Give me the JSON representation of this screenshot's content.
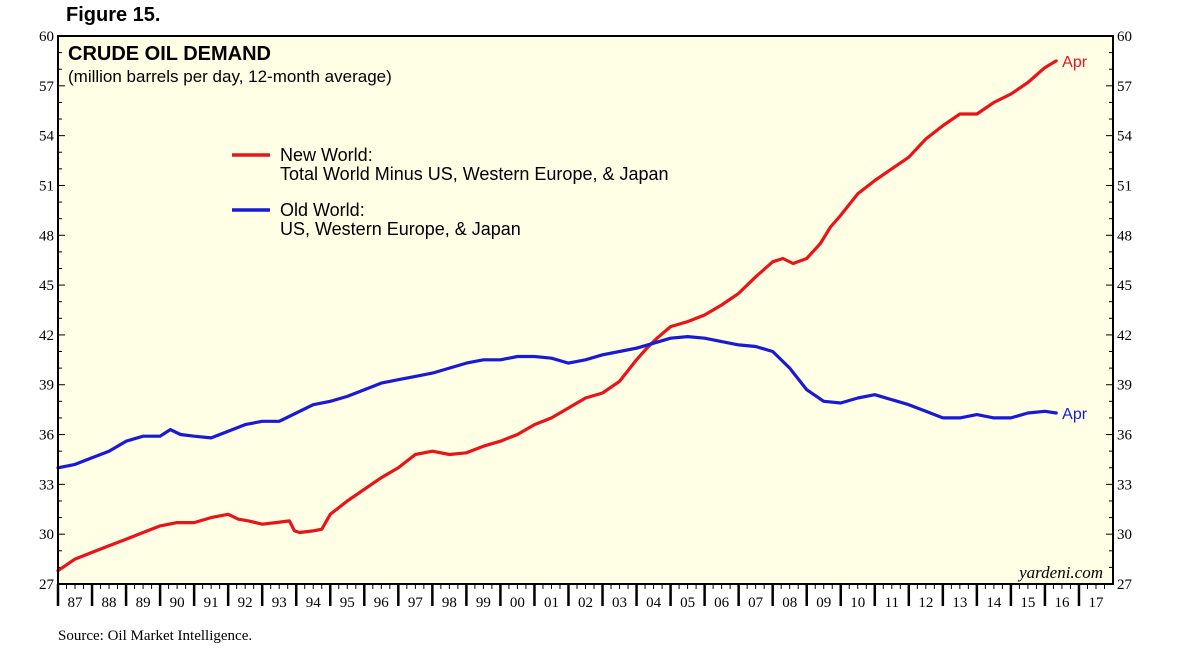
{
  "figure_label": "Figure 15.",
  "source": "Source: Oil Market Intelligence.",
  "watermark": "yardeni.com",
  "chart_data": {
    "type": "line",
    "title": "CRUDE OIL DEMAND",
    "subtitle": "(million barrels per day, 12-month average)",
    "ylim": [
      27,
      60
    ],
    "yticks": [
      27,
      30,
      33,
      36,
      39,
      42,
      45,
      48,
      51,
      54,
      57,
      60
    ],
    "xlim": [
      1987,
      2018
    ],
    "xtick_labels": [
      "87",
      "88",
      "89",
      "90",
      "91",
      "92",
      "93",
      "94",
      "95",
      "96",
      "97",
      "98",
      "99",
      "00",
      "01",
      "02",
      "03",
      "04",
      "05",
      "06",
      "07",
      "08",
      "09",
      "10",
      "11",
      "12",
      "13",
      "14",
      "15",
      "16",
      "17"
    ],
    "background_color": "#ffffe6",
    "grid": false,
    "legend_position": "upper-left",
    "series": [
      {
        "name": "New World:",
        "name_line2": "Total World Minus US, Western Europe, & Japan",
        "color": "#e8141a",
        "end_label": "Apr",
        "x": [
          1987.0,
          1987.5,
          1988.0,
          1988.5,
          1989.0,
          1989.5,
          1990.0,
          1990.5,
          1991.0,
          1991.5,
          1992.0,
          1992.3,
          1992.6,
          1993.0,
          1993.4,
          1993.8,
          1993.95,
          1994.1,
          1994.5,
          1994.75,
          1995.0,
          1995.5,
          1996.0,
          1996.5,
          1997.0,
          1997.5,
          1998.0,
          1998.5,
          1999.0,
          1999.5,
          2000.0,
          2000.5,
          2001.0,
          2001.5,
          2002.0,
          2002.5,
          2003.0,
          2003.5,
          2004.0,
          2004.3,
          2004.6,
          2005.0,
          2005.5,
          2006.0,
          2006.5,
          2007.0,
          2007.5,
          2008.0,
          2008.3,
          2008.6,
          2009.0,
          2009.4,
          2009.7,
          2010.0,
          2010.5,
          2011.0,
          2011.5,
          2012.0,
          2012.5,
          2013.0,
          2013.5,
          2014.0,
          2014.5,
          2015.0,
          2015.5,
          2016.0,
          2016.33
        ],
        "values": [
          27.8,
          28.5,
          28.9,
          29.3,
          29.7,
          30.1,
          30.5,
          30.7,
          30.7,
          31.0,
          31.2,
          30.9,
          30.8,
          30.6,
          30.7,
          30.8,
          30.2,
          30.1,
          30.2,
          30.3,
          31.2,
          32.0,
          32.7,
          33.4,
          34.0,
          34.8,
          35.0,
          34.8,
          34.9,
          35.3,
          35.6,
          36.0,
          36.6,
          37.0,
          37.6,
          38.2,
          38.5,
          39.2,
          40.5,
          41.2,
          41.8,
          42.5,
          42.8,
          43.2,
          43.8,
          44.5,
          45.5,
          46.4,
          46.6,
          46.3,
          46.6,
          47.5,
          48.5,
          49.2,
          50.5,
          51.3,
          52.0,
          52.7,
          53.8,
          54.6,
          55.3,
          55.3,
          56.0,
          56.5,
          57.2,
          58.1,
          58.5
        ]
      },
      {
        "name": "Old World:",
        "name_line2": "US, Western Europe, & Japan",
        "color": "#1a1ad6",
        "end_label": "Apr",
        "x": [
          1987.0,
          1987.5,
          1988.0,
          1988.5,
          1989.0,
          1989.5,
          1990.0,
          1990.3,
          1990.6,
          1991.0,
          1991.5,
          1992.0,
          1992.5,
          1993.0,
          1993.5,
          1994.0,
          1994.5,
          1995.0,
          1995.5,
          1996.0,
          1996.5,
          1997.0,
          1997.5,
          1998.0,
          1998.5,
          1999.0,
          1999.5,
          2000.0,
          2000.5,
          2001.0,
          2001.5,
          2002.0,
          2002.5,
          2003.0,
          2003.5,
          2004.0,
          2004.5,
          2005.0,
          2005.5,
          2006.0,
          2006.5,
          2007.0,
          2007.5,
          2008.0,
          2008.5,
          2009.0,
          2009.5,
          2010.0,
          2010.5,
          2011.0,
          2011.5,
          2012.0,
          2012.5,
          2013.0,
          2013.5,
          2014.0,
          2014.5,
          2015.0,
          2015.5,
          2016.0,
          2016.33
        ],
        "values": [
          34.0,
          34.2,
          34.6,
          35.0,
          35.6,
          35.9,
          35.9,
          36.3,
          36.0,
          35.9,
          35.8,
          36.2,
          36.6,
          36.8,
          36.8,
          37.3,
          37.8,
          38.0,
          38.3,
          38.7,
          39.1,
          39.3,
          39.5,
          39.7,
          40.0,
          40.3,
          40.5,
          40.5,
          40.7,
          40.7,
          40.6,
          40.3,
          40.5,
          40.8,
          41.0,
          41.2,
          41.5,
          41.8,
          41.9,
          41.8,
          41.6,
          41.4,
          41.3,
          41.0,
          40.0,
          38.7,
          38.0,
          37.9,
          38.2,
          38.4,
          38.1,
          37.8,
          37.4,
          37.0,
          37.0,
          37.2,
          37.0,
          37.0,
          37.3,
          37.4,
          37.3
        ]
      }
    ]
  }
}
